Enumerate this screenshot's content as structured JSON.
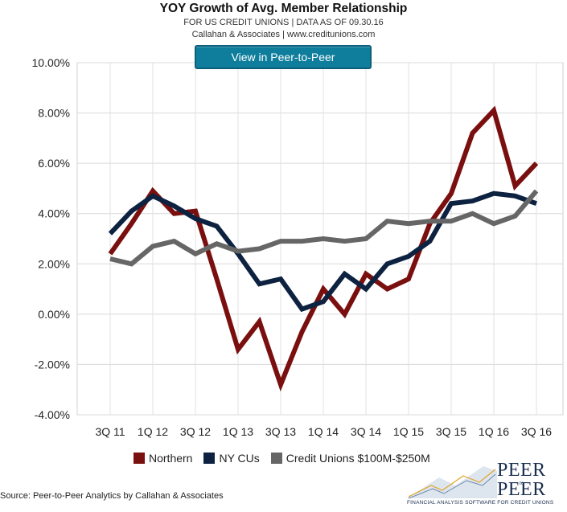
{
  "header": {
    "title": "YOY Growth of Avg. Member Relationship",
    "subtitle": "FOR US CREDIT UNIONS | DATA AS OF 09.30.16",
    "subtitle2": "Callahan & Associates | www.creditunions.com",
    "button_label": "View in Peer-to-Peer"
  },
  "footer": {
    "source": "Source: Peer-to-Peer Analytics by Callahan & Associates",
    "logo_line1": "PEER",
    "logo_to": "to",
    "logo_line2": "PEER",
    "logo_tagline": "FINANCIAL ANALYSIS SOFTWARE FOR CREDIT UNIONS"
  },
  "chart_data": {
    "type": "line",
    "title": "YOY Growth of Avg. Member Relationship",
    "xlabel": "",
    "ylabel": "",
    "grid": true,
    "legend_position": "bottom",
    "ylim": [
      -4,
      10
    ],
    "ytick_values": [
      -4,
      -2,
      0,
      2,
      4,
      6,
      8,
      10
    ],
    "ytick_labels": [
      "-4.00%",
      "-2.00%",
      "0.00%",
      "2.00%",
      "4.00%",
      "6.00%",
      "8.00%",
      "10.00%"
    ],
    "x": [
      "3Q 11",
      "4Q 11",
      "1Q 12",
      "2Q 12",
      "3Q 12",
      "4Q 12",
      "1Q 13",
      "2Q 13",
      "3Q 13",
      "4Q 13",
      "1Q 14",
      "2Q 14",
      "3Q 14",
      "4Q 14",
      "1Q 15",
      "2Q 15",
      "3Q 15",
      "4Q 15",
      "1Q 16",
      "2Q 16",
      "3Q 16"
    ],
    "xtick_labels": [
      "3Q 11",
      "",
      "1Q 12",
      "",
      "3Q 12",
      "",
      "1Q 13",
      "",
      "3Q 13",
      "",
      "1Q 14",
      "",
      "3Q 14",
      "",
      "1Q 15",
      "",
      "3Q 15",
      "",
      "1Q 16",
      "",
      "3Q 16"
    ],
    "series": [
      {
        "name": "Northern",
        "color": "#7a0f0f",
        "values": [
          2.4,
          3.6,
          4.9,
          4.0,
          4.1,
          1.4,
          -1.4,
          -0.3,
          -2.8,
          -0.7,
          1.0,
          0.0,
          1.6,
          1.0,
          1.4,
          3.6,
          4.8,
          7.2,
          8.1,
          5.1,
          6.0
        ]
      },
      {
        "name": "NY CUs",
        "color": "#0d2240",
        "values": [
          3.2,
          4.1,
          4.7,
          4.3,
          3.8,
          3.5,
          2.4,
          1.2,
          1.4,
          0.2,
          0.5,
          1.6,
          1.0,
          2.0,
          2.3,
          2.9,
          4.4,
          4.5,
          4.8,
          4.7,
          4.4
        ]
      },
      {
        "name": "Credit Unions $100M-$250M",
        "color": "#666666",
        "values": [
          2.2,
          2.0,
          2.7,
          2.9,
          2.4,
          2.8,
          2.5,
          2.6,
          2.9,
          2.9,
          3.0,
          2.9,
          3.0,
          3.7,
          3.6,
          3.7,
          3.7,
          4.0,
          3.6,
          3.9,
          4.9
        ]
      }
    ]
  }
}
